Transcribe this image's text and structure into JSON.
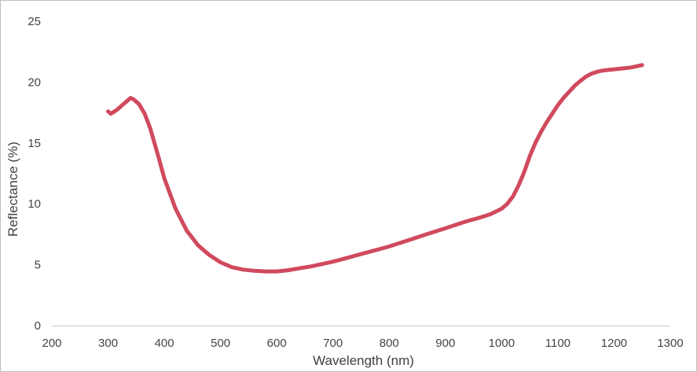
{
  "chart_data": {
    "type": "line",
    "title": "",
    "xlabel": "Wavelength (nm)",
    "ylabel": "Reflectance (%)",
    "xlim": [
      200,
      1300
    ],
    "ylim": [
      0,
      25
    ],
    "x_ticks": [
      200,
      300,
      400,
      500,
      600,
      700,
      800,
      900,
      1000,
      1100,
      1200,
      1300
    ],
    "y_ticks": [
      0,
      5,
      10,
      15,
      20,
      25
    ],
    "x_tick_labels": [
      "200",
      "300",
      "400",
      "500",
      "600",
      "700",
      "800",
      "900",
      "1000",
      "1100",
      "1200",
      "1300"
    ],
    "y_tick_labels": [
      "0",
      "5",
      "10",
      "15",
      "20",
      "25"
    ],
    "grid": false,
    "legend": "none",
    "line_color": "#d04a5e",
    "series": [
      {
        "x": [
          300,
          305,
          315,
          330,
          340,
          345,
          355,
          365,
          375,
          390,
          400,
          420,
          440,
          460,
          480,
          500,
          520,
          540,
          560,
          580,
          600,
          620,
          640,
          660,
          680,
          700,
          720,
          740,
          760,
          780,
          800,
          820,
          840,
          860,
          880,
          900,
          920,
          940,
          960,
          980,
          1000,
          1010,
          1020,
          1030,
          1040,
          1050,
          1060,
          1070,
          1080,
          1090,
          1100,
          1110,
          1120,
          1130,
          1140,
          1150,
          1160,
          1170,
          1180,
          1190,
          1200,
          1210,
          1220,
          1230,
          1240,
          1250
        ],
        "y": [
          17.6,
          17.4,
          17.7,
          18.3,
          18.7,
          18.6,
          18.2,
          17.4,
          16.2,
          13.8,
          12.1,
          9.6,
          7.8,
          6.6,
          5.8,
          5.2,
          4.8,
          4.6,
          4.5,
          4.45,
          4.45,
          4.55,
          4.7,
          4.85,
          5.05,
          5.25,
          5.5,
          5.75,
          6.0,
          6.25,
          6.5,
          6.8,
          7.1,
          7.4,
          7.7,
          8.0,
          8.3,
          8.6,
          8.85,
          9.15,
          9.6,
          10.0,
          10.6,
          11.5,
          12.6,
          13.9,
          15.0,
          15.9,
          16.7,
          17.4,
          18.1,
          18.7,
          19.2,
          19.7,
          20.1,
          20.45,
          20.7,
          20.85,
          20.95,
          21.0,
          21.05,
          21.1,
          21.15,
          21.2,
          21.3,
          21.4
        ]
      }
    ]
  }
}
